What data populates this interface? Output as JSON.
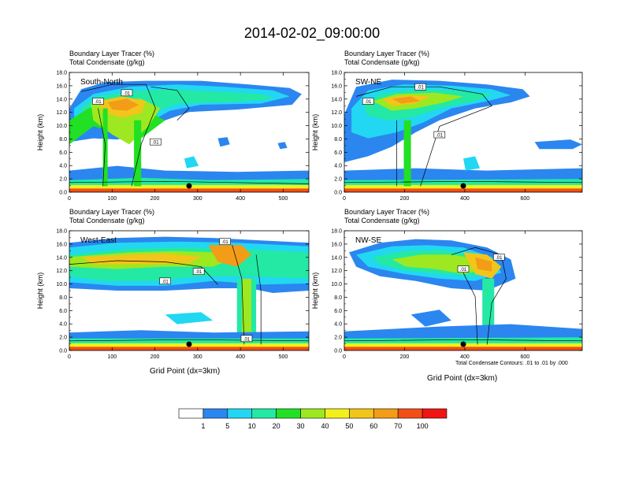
{
  "figure_title": "2014-02-02_09:00:00",
  "footnote": "Total Condensate Contours: .01 to .01 by .000",
  "colorbar": {
    "colors": [
      "#ffffff",
      "#2b86f0",
      "#22d7f2",
      "#24e9a4",
      "#22e024",
      "#9de820",
      "#f2f01b",
      "#f2c51b",
      "#f29c18",
      "#f24f17",
      "#f01414"
    ],
    "labels": [
      "1",
      "5",
      "10",
      "20",
      "30",
      "40",
      "50",
      "60",
      "70",
      "100"
    ]
  },
  "chart_data": [
    {
      "type": "heatmap",
      "title_line1": "Boundary Layer Tracer   (%)",
      "title_line2": "Total Condensate   (g/kg)",
      "panel_label": "South-North",
      "ylabel": "Height (km)",
      "xlabel": "",
      "ylim": [
        0,
        18
      ],
      "xlim": [
        0,
        560
      ],
      "yticks": [
        "0.0",
        "2.0",
        "4.0",
        "6.0",
        "8.0",
        "10.0",
        "12.0",
        "14.0",
        "16.0",
        "18.0"
      ],
      "xticks": [
        0,
        100,
        200,
        300,
        400,
        500
      ],
      "xticklabels": [
        "0",
        "100",
        "200",
        "300",
        "400",
        "500"
      ],
      "contour_labels": [
        ".01",
        ".01",
        ".01"
      ],
      "marker_x": 280
    },
    {
      "type": "heatmap",
      "title_line1": "Boundary Layer Tracer   (%)",
      "title_line2": "Total Condensate   (g/kg)",
      "panel_label": "SW-NE",
      "ylabel": "Height (km)",
      "xlabel": "",
      "ylim": [
        0,
        18
      ],
      "xlim": [
        0,
        790
      ],
      "yticks": [
        "0.0",
        "2.0",
        "4.0",
        "6.0",
        "8.0",
        "10.0",
        "12.0",
        "14.0",
        "16.0",
        "18.0"
      ],
      "xticks": [
        0,
        200,
        400,
        600
      ],
      "xticklabels": [
        "0",
        "200",
        "400",
        "600"
      ],
      "contour_labels": [
        ".01",
        ".01",
        ".01"
      ],
      "marker_x": 395
    },
    {
      "type": "heatmap",
      "title_line1": "Boundary Layer Tracer   (%)",
      "title_line2": "Total Condensate   (g/kg)",
      "panel_label": "West-East",
      "ylabel": "Height (km)",
      "xlabel": "Grid Point (dx=3km)",
      "ylim": [
        0,
        18
      ],
      "xlim": [
        0,
        560
      ],
      "yticks": [
        "0.0",
        "2.0",
        "4.0",
        "6.0",
        "8.0",
        "10.0",
        "12.0",
        "14.0",
        "16.0",
        "18.0"
      ],
      "xticks": [
        0,
        100,
        200,
        300,
        400,
        500
      ],
      "xticklabels": [
        "0",
        "100",
        "200",
        "300",
        "400",
        "500"
      ],
      "contour_labels": [
        ".01",
        ".01",
        ".01",
        ".01"
      ],
      "marker_x": 280
    },
    {
      "type": "heatmap",
      "title_line1": "Boundary Layer Tracer   (%)",
      "title_line2": "Total Condensate   (g/kg)",
      "panel_label": "NW-SE",
      "ylabel": "Height (km)",
      "xlabel": "Grid Point (dx=3km)",
      "ylim": [
        0,
        18
      ],
      "xlim": [
        0,
        790
      ],
      "yticks": [
        "0.0",
        "2.0",
        "4.0",
        "6.0",
        "8.0",
        "10.0",
        "12.0",
        "14.0",
        "16.0",
        "18.0"
      ],
      "xticks": [
        0,
        200,
        400,
        600
      ],
      "xticklabels": [
        "0",
        "200",
        "400",
        "600"
      ],
      "contour_labels": [
        ".01",
        ".01"
      ],
      "marker_x": 395
    }
  ]
}
